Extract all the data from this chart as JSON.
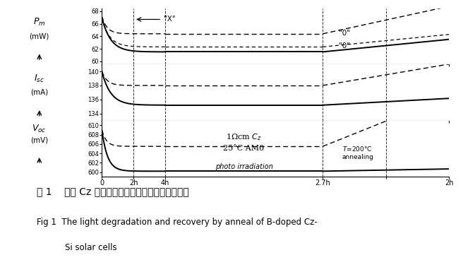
{
  "fig_width": 6.56,
  "fig_height": 3.85,
  "dpi": 100,
  "bg_color": "#ffffff",
  "pm_ylim": [
    59.5,
    68.5
  ],
  "pm_yticks": [
    60,
    62,
    64,
    66,
    68
  ],
  "pm_ytick_labels": [
    "60",
    "62",
    "64",
    "66",
    "68"
  ],
  "isc_ylim": [
    133.0,
    141.0
  ],
  "isc_yticks": [
    134,
    136,
    138,
    140
  ],
  "isc_ytick_labels": [
    "134",
    "136",
    "138",
    "140"
  ],
  "voc_ylim": [
    599.0,
    611.0
  ],
  "voc_yticks": [
    600,
    602,
    604,
    606,
    608,
    610
  ],
  "voc_ytick_labels": [
    "600",
    "602",
    "604",
    "606",
    "608",
    "610"
  ],
  "vline_positions": [
    2,
    4,
    14,
    18,
    22
  ],
  "line_color": "#000000",
  "vline_color": "#555555",
  "annotation_condition_line1": "1Ωcm C₂",
  "annotation_condition_line2": "25°C AM0",
  "annotation_phase2": "photo irradiation",
  "annotation_phase3_line1": "T=200°C",
  "annotation_phase3_line2": "annealing",
  "caption_zh": "图 1    掺垅 Cz 硅太阳电池的光衰减和退火恢复行为",
  "caption_en1": "Fig 1  The light degradation and recovery by anneal of B‑doped Cz‑",
  "caption_en2": "Si solar cells"
}
